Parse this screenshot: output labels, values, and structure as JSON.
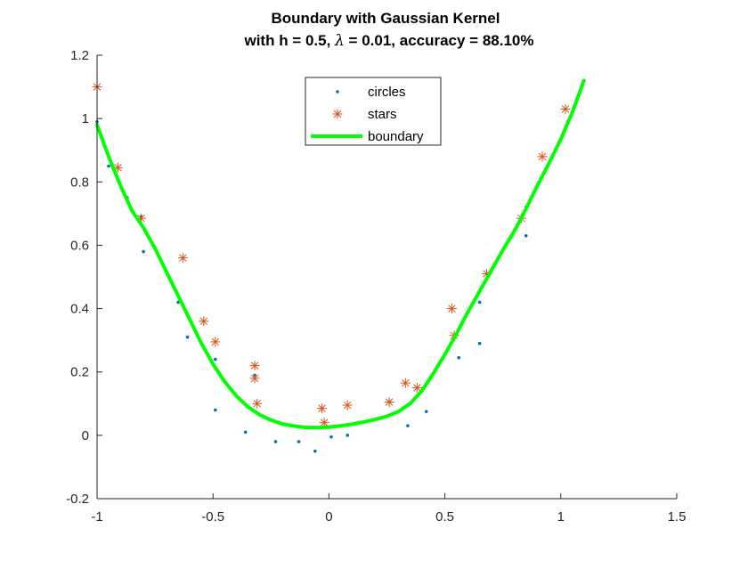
{
  "chart_data": {
    "type": "scatter",
    "title_line1": "Boundary with Gaussian Kernel",
    "title_line2_prefix": "with h = 0.5, ",
    "title_line2_lambda": "λ",
    "title_line2_suffix": " = 0.01, accuracy = 88.10%",
    "xlabel": "",
    "ylabel": "",
    "xlim": [
      -1,
      1.5
    ],
    "ylim": [
      -0.2,
      1.2
    ],
    "xticks": [
      -1,
      -0.5,
      0,
      0.5,
      1,
      1.5
    ],
    "xtick_labels": [
      "-1",
      "-0.5",
      "0",
      "0.5",
      "1",
      "1.5"
    ],
    "yticks": [
      -0.2,
      0,
      0.2,
      0.4,
      0.6,
      0.8,
      1,
      1.2
    ],
    "ytick_labels": [
      "-0.2",
      "0",
      "0.2",
      "0.4",
      "0.6",
      "0.8",
      "1",
      "1.2"
    ],
    "grid": false,
    "legend_position": "top-center",
    "series": [
      {
        "name": "circles",
        "marker": "dot",
        "color": "#0072BD",
        "points": [
          [
            -1.0,
            0.99
          ],
          [
            -0.95,
            0.85
          ],
          [
            -0.87,
            0.75
          ],
          [
            -0.8,
            0.58
          ],
          [
            -0.81,
            0.69
          ],
          [
            -0.65,
            0.42
          ],
          [
            -0.61,
            0.31
          ],
          [
            -0.49,
            0.24
          ],
          [
            -0.49,
            0.08
          ],
          [
            -0.36,
            0.01
          ],
          [
            -0.32,
            0.19
          ],
          [
            -0.23,
            -0.02
          ],
          [
            -0.13,
            -0.02
          ],
          [
            -0.06,
            -0.05
          ],
          [
            0.01,
            -0.005
          ],
          [
            0.08,
            0.0
          ],
          [
            0.34,
            0.03
          ],
          [
            0.42,
            0.075
          ],
          [
            0.56,
            0.245
          ],
          [
            0.65,
            0.42
          ],
          [
            0.65,
            0.29
          ],
          [
            0.85,
            0.63
          ],
          [
            0.85,
            0.72
          ],
          [
            1.03,
            0.99
          ]
        ]
      },
      {
        "name": "stars",
        "marker": "asterisk",
        "color": "#D95319",
        "points": [
          [
            -1.0,
            1.1
          ],
          [
            -0.91,
            0.845
          ],
          [
            -0.81,
            0.685
          ],
          [
            -0.63,
            0.56
          ],
          [
            -0.54,
            0.36
          ],
          [
            -0.49,
            0.295
          ],
          [
            -0.32,
            0.22
          ],
          [
            -0.32,
            0.18
          ],
          [
            -0.31,
            0.1
          ],
          [
            -0.03,
            0.085
          ],
          [
            -0.02,
            0.04
          ],
          [
            0.08,
            0.095
          ],
          [
            0.26,
            0.105
          ],
          [
            0.33,
            0.165
          ],
          [
            0.38,
            0.15
          ],
          [
            0.53,
            0.4
          ],
          [
            0.54,
            0.315
          ],
          [
            0.68,
            0.51
          ],
          [
            0.83,
            0.685
          ],
          [
            0.92,
            0.88
          ],
          [
            1.02,
            1.03
          ]
        ]
      },
      {
        "name": "boundary",
        "marker": "line",
        "color": "#00FF00",
        "points": [
          [
            -1.0,
            0.98
          ],
          [
            -0.95,
            0.88
          ],
          [
            -0.9,
            0.79
          ],
          [
            -0.85,
            0.71
          ],
          [
            -0.8,
            0.655
          ],
          [
            -0.75,
            0.59
          ],
          [
            -0.7,
            0.515
          ],
          [
            -0.65,
            0.44
          ],
          [
            -0.6,
            0.365
          ],
          [
            -0.55,
            0.29
          ],
          [
            -0.5,
            0.225
          ],
          [
            -0.45,
            0.17
          ],
          [
            -0.4,
            0.125
          ],
          [
            -0.35,
            0.09
          ],
          [
            -0.3,
            0.065
          ],
          [
            -0.25,
            0.048
          ],
          [
            -0.2,
            0.036
          ],
          [
            -0.15,
            0.029
          ],
          [
            -0.1,
            0.025
          ],
          [
            -0.05,
            0.024
          ],
          [
            0.0,
            0.026
          ],
          [
            0.05,
            0.03
          ],
          [
            0.1,
            0.035
          ],
          [
            0.15,
            0.042
          ],
          [
            0.2,
            0.05
          ],
          [
            0.25,
            0.06
          ],
          [
            0.3,
            0.075
          ],
          [
            0.35,
            0.1
          ],
          [
            0.4,
            0.14
          ],
          [
            0.45,
            0.195
          ],
          [
            0.5,
            0.255
          ],
          [
            0.55,
            0.32
          ],
          [
            0.6,
            0.39
          ],
          [
            0.65,
            0.455
          ],
          [
            0.7,
            0.52
          ],
          [
            0.75,
            0.585
          ],
          [
            0.8,
            0.645
          ],
          [
            0.85,
            0.715
          ],
          [
            0.9,
            0.79
          ],
          [
            0.95,
            0.86
          ],
          [
            1.0,
            0.935
          ],
          [
            1.05,
            1.02
          ],
          [
            1.1,
            1.12
          ]
        ]
      }
    ]
  }
}
